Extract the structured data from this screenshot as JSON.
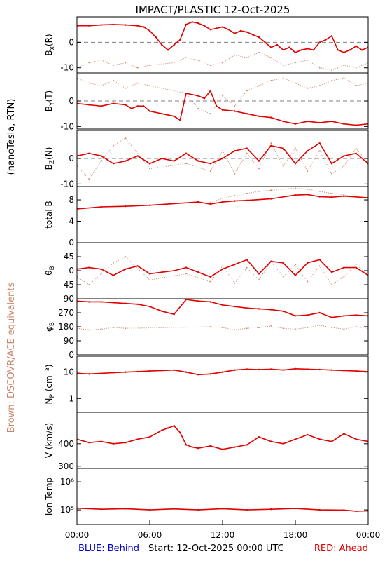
{
  "title": "IMPACT/PLASTIC   12-Oct-2025",
  "left_label": "(nanoTesla, RTN)",
  "brown_note": "Brown: DSCOVR/ACE equivalents",
  "footer": {
    "blue": "BLUE: Behind",
    "start": "Start: 12-Oct-2025 00:00 UTC",
    "red": "RED: Ahead"
  },
  "colors": {
    "ahead": "#e00000",
    "equiv": "#c8876a",
    "behind": "#0000cc",
    "zero_line": "#808080"
  },
  "chart_data": {
    "type": "line",
    "x_ticks": [
      "00:00",
      "06:00",
      "12:00",
      "18:00",
      "00:00"
    ],
    "x_range_hours": [
      0,
      24
    ],
    "panels": [
      {
        "id": "bx",
        "label_main": "B",
        "label_sub": "x",
        "label_tail": "(R)",
        "scale": "linear",
        "ylim": [
          -12,
          10
        ],
        "ticks": [
          0,
          -10
        ],
        "tick_labels": [
          "0",
          "-10"
        ],
        "zero_line": true,
        "series": [
          {
            "role": "ahead",
            "x": [
              0,
              1,
              2,
              3,
              4,
              5,
              5.5,
              6,
              6.5,
              7,
              7.5,
              8,
              8.5,
              9,
              9.5,
              10,
              10.5,
              11,
              11.5,
              12,
              12.5,
              13,
              13.5,
              14,
              14.5,
              15,
              15.5,
              16,
              16.5,
              17,
              17.5,
              18,
              18.5,
              19,
              19.5,
              20,
              20.5,
              21,
              21.5,
              22,
              22.5,
              23,
              23.5,
              24
            ],
            "y": [
              6.5,
              6.5,
              6.8,
              7,
              6.8,
              6.5,
              6,
              4.5,
              2,
              -1,
              -3,
              -1,
              1,
              7,
              8,
              7.5,
              6.5,
              5,
              5.5,
              6,
              5,
              3.5,
              4.5,
              4,
              3,
              2,
              0,
              -2,
              -1,
              -3,
              -2,
              -4,
              -3,
              -2.5,
              -3,
              0,
              1,
              2.5,
              -3,
              -4,
              -3,
              -1.5,
              -3,
              -2
            ]
          },
          {
            "role": "equiv",
            "x": [
              0,
              1,
              2,
              3,
              4,
              5,
              6,
              8,
              9,
              10,
              11,
              12,
              13,
              14,
              15,
              16,
              17,
              18,
              19,
              20,
              21,
              22,
              23,
              24
            ],
            "y": [
              -10,
              -8,
              -7,
              -9,
              -8,
              -10,
              -9,
              -8,
              -6,
              -7,
              -9,
              -8,
              -5,
              -6,
              -4,
              -6,
              -9,
              -8,
              -7,
              -10,
              -11,
              -9,
              -10,
              -8
            ]
          }
        ]
      },
      {
        "id": "by",
        "label_main": "B",
        "label_sub": "Y",
        "label_tail": "(T)",
        "scale": "linear",
        "ylim": [
          -11,
          11
        ],
        "ticks": [
          0,
          -10
        ],
        "tick_labels": [
          "0",
          "-10"
        ],
        "zero_line": true,
        "series": [
          {
            "role": "ahead",
            "x": [
              0,
              1,
              2,
              3,
              4,
              4.5,
              5,
              5.5,
              6,
              7,
              8,
              8.5,
              9,
              9.5,
              10,
              10.5,
              11,
              11.5,
              12,
              13,
              14,
              15,
              16,
              17,
              18,
              19,
              20,
              21,
              22,
              23,
              24
            ],
            "y": [
              -1,
              -1.5,
              -2,
              -1,
              -1.5,
              -3,
              -2,
              -2,
              -4,
              -5,
              -6,
              -7.5,
              3,
              2.5,
              2,
              1,
              4,
              -2,
              -3.5,
              -4,
              -5,
              -6,
              -6.5,
              -8,
              -9,
              -8,
              -8.5,
              -8,
              -9,
              -9.5,
              -9
            ]
          },
          {
            "role": "equiv",
            "x": [
              0,
              1,
              2,
              3,
              4,
              5,
              8,
              9,
              10,
              11,
              12,
              13,
              14,
              15,
              16,
              17,
              18,
              19,
              20,
              21,
              22,
              23,
              24
            ],
            "y": [
              9,
              7,
              6,
              8,
              5,
              7,
              4,
              3,
              -3,
              -5,
              2,
              -2,
              4,
              6,
              8,
              9,
              7,
              5,
              6,
              8,
              9,
              6,
              7
            ]
          }
        ]
      },
      {
        "id": "bz",
        "label_main": "B",
        "label_sub": "Z",
        "label_tail": "(N)",
        "scale": "linear",
        "ylim": [
          -11,
          11
        ],
        "ticks": [
          0,
          -10
        ],
        "tick_labels": [
          "0",
          "-10"
        ],
        "zero_line": true,
        "series": [
          {
            "role": "ahead",
            "x": [
              0,
              1,
              2,
              3,
              4,
              5,
              6,
              7,
              8,
              9,
              10,
              11,
              12,
              13,
              14,
              15,
              16,
              17,
              18,
              19,
              20,
              21,
              22,
              23,
              24
            ],
            "y": [
              1,
              2,
              1,
              -2,
              -1,
              1,
              -2,
              0,
              -1,
              2,
              -1,
              -2,
              0,
              3,
              4,
              -1,
              5,
              4,
              -2,
              3,
              6,
              -2,
              1,
              2,
              -2
            ]
          },
          {
            "role": "equiv",
            "x": [
              0,
              1,
              2,
              3,
              4,
              6,
              9,
              11,
              12,
              13,
              14,
              15,
              16,
              17,
              18,
              19,
              20,
              21,
              22,
              23,
              24
            ],
            "y": [
              -3,
              -8,
              -1,
              5,
              8,
              -4,
              -2,
              -5,
              3,
              -6,
              2,
              -4,
              6,
              -3,
              4,
              -5,
              3,
              -6,
              -3,
              4,
              -2
            ]
          }
        ]
      },
      {
        "id": "btotal",
        "label_main": "total B",
        "label_sub": "",
        "label_tail": "",
        "scale": "linear",
        "ylim": [
          0,
          10.5
        ],
        "ticks": [
          8,
          4,
          0
        ],
        "tick_labels": [
          "8",
          "4",
          "0"
        ],
        "zero_line": false,
        "series": [
          {
            "role": "ahead",
            "x": [
              0,
              2,
              4,
              6,
              8,
              10,
              11,
              12,
              13,
              14,
              16,
              18,
              19,
              20,
              21,
              22,
              24
            ],
            "y": [
              6.3,
              6.7,
              6.8,
              7,
              7.3,
              7.6,
              7.2,
              7.6,
              7.8,
              7.9,
              8.2,
              8.9,
              9,
              8.6,
              8.5,
              8.7,
              8.4
            ]
          },
          {
            "role": "equiv",
            "x": [
              11,
              12,
              13,
              14,
              15,
              16,
              17,
              18,
              19,
              20,
              21,
              22,
              23,
              24
            ],
            "y": [
              7.5,
              8.3,
              8.8,
              9.2,
              9.6,
              9.8,
              10,
              10.2,
              10,
              9.6,
              9.2,
              8.9,
              8.6,
              8.4
            ]
          }
        ]
      },
      {
        "id": "theta",
        "label_main": "θ",
        "label_sub": "B",
        "label_tail": "",
        "scale": "linear",
        "ylim": [
          -90,
          90
        ],
        "ticks": [
          45,
          0,
          -45,
          -90
        ],
        "tick_labels": [
          "45",
          "0",
          "-45",
          "-90"
        ],
        "zero_line": false,
        "series": [
          {
            "role": "ahead",
            "x": [
              0,
              1,
              2,
              3,
              4,
              5,
              6,
              7,
              8,
              9,
              10,
              11,
              12,
              13,
              14,
              15,
              16,
              17,
              18,
              19,
              20,
              21,
              22,
              23,
              24
            ],
            "y": [
              5,
              10,
              5,
              -15,
              5,
              15,
              -10,
              -5,
              0,
              10,
              -5,
              -20,
              5,
              20,
              35,
              -10,
              30,
              25,
              -15,
              25,
              35,
              -5,
              10,
              10,
              -15
            ]
          },
          {
            "role": "equiv",
            "x": [
              0,
              1,
              2,
              3,
              4,
              6,
              9,
              11,
              12,
              13,
              14,
              15,
              16,
              17,
              18,
              19,
              20,
              21,
              22,
              23,
              24
            ],
            "y": [
              -20,
              -45,
              -10,
              25,
              45,
              -30,
              -10,
              -35,
              15,
              -40,
              10,
              -30,
              30,
              -20,
              20,
              -35,
              15,
              -45,
              -20,
              20,
              -15
            ]
          }
        ]
      },
      {
        "id": "phi",
        "label_main": "φ",
        "label_sub": "B",
        "label_tail": "",
        "scale": "linear",
        "ylim": [
          0,
          360
        ],
        "ticks": [
          270,
          180,
          90,
          0
        ],
        "tick_labels": [
          "270",
          "180",
          "90",
          "0"
        ],
        "zero_line": false,
        "series": [
          {
            "role": "ahead",
            "x": [
              0,
              1,
              2,
              3,
              4,
              5,
              6,
              7,
              8,
              9,
              10,
              11,
              12,
              13,
              14,
              15,
              16,
              17,
              18,
              19,
              20,
              21,
              22,
              23,
              24
            ],
            "y": [
              345,
              340,
              340,
              335,
              330,
              325,
              310,
              280,
              260,
              355,
              345,
              340,
              320,
              310,
              300,
              295,
              290,
              280,
              250,
              255,
              270,
              240,
              250,
              255,
              250
            ]
          },
          {
            "role": "equiv",
            "x": [
              0,
              1,
              2,
              3,
              4,
              11,
              12,
              13,
              14,
              15,
              16,
              17,
              18,
              19,
              20,
              21,
              22,
              23,
              24
            ],
            "y": [
              170,
              160,
              165,
              175,
              170,
              180,
              175,
              160,
              170,
              175,
              185,
              170,
              165,
              175,
              190,
              175,
              165,
              180,
              170
            ]
          }
        ]
      },
      {
        "id": "np",
        "label_main": "N",
        "label_sub": "P",
        "label_tail": " (cm⁻³)",
        "scale": "log",
        "ylim": [
          0.3,
          40
        ],
        "ticks": [
          10,
          1
        ],
        "tick_labels": [
          "10",
          "1"
        ],
        "zero_line": false,
        "series": [
          {
            "role": "ahead",
            "x": [
              0,
              1,
              2,
              3,
              4,
              5,
              6,
              7,
              8,
              9,
              10,
              11,
              12,
              13,
              14,
              15,
              16,
              17,
              18,
              19,
              20,
              21,
              22,
              23,
              24
            ],
            "y": [
              9,
              8.5,
              9,
              9.5,
              10,
              10.5,
              11,
              11.5,
              12,
              10,
              8,
              8.5,
              10,
              12,
              13,
              12.5,
              13,
              12,
              13.5,
              13,
              12.5,
              12,
              11.5,
              11,
              10.5
            ]
          }
        ]
      },
      {
        "id": "v",
        "label_main": "V (km/s)",
        "label_sub": "",
        "label_tail": "",
        "scale": "linear",
        "ylim": [
          290,
          540
        ],
        "ticks": [
          400,
          300
        ],
        "tick_labels": [
          "400",
          "300"
        ],
        "zero_line": false,
        "series": [
          {
            "role": "ahead",
            "x": [
              0,
              1,
              2,
              3,
              4,
              5,
              6,
              7,
              7.5,
              8,
              8.5,
              9,
              9.5,
              10,
              11,
              12,
              13,
              14,
              15,
              16,
              17,
              18,
              19,
              20,
              21,
              22,
              23,
              24
            ],
            "y": [
              420,
              405,
              410,
              400,
              405,
              420,
              430,
              460,
              470,
              480,
              450,
              395,
              385,
              380,
              390,
              375,
              385,
              395,
              430,
              410,
              400,
              420,
              440,
              420,
              410,
              445,
              420,
              410
            ]
          }
        ]
      },
      {
        "id": "temp",
        "label_main": "Ion Temp",
        "label_sub": "",
        "label_tail": "",
        "scale": "log",
        "ylim": [
          30000,
          3000000
        ],
        "ticks": [
          1000000,
          100000
        ],
        "tick_labels": [
          "10⁶",
          "10⁵"
        ],
        "zero_line": false,
        "series": [
          {
            "role": "ahead",
            "x": [
              0,
              2,
              4,
              6,
              8,
              10,
              12,
              14,
              16,
              18,
              20,
              22,
              23,
              24
            ],
            "y": [
              115000,
              105000,
              110000,
              100000,
              108000,
              100000,
              110000,
              100000,
              105000,
              112000,
              100000,
              98000,
              90000,
              92000
            ]
          }
        ]
      }
    ]
  }
}
